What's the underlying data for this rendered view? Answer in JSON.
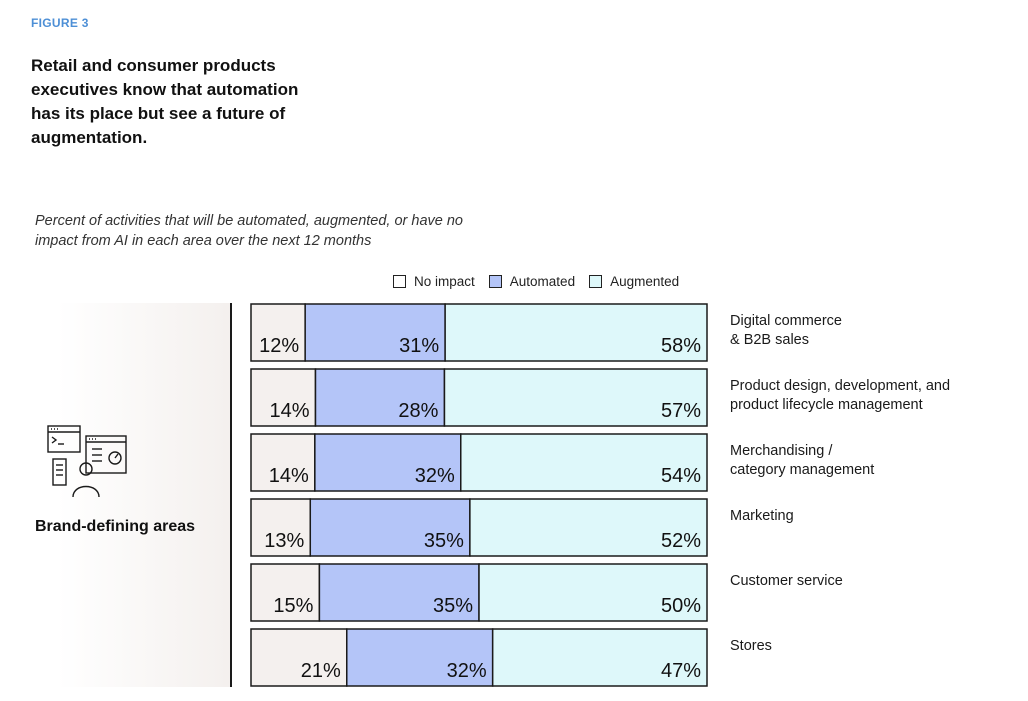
{
  "figure_label": "FIGURE 3",
  "colors": {
    "no_impact": "#f4f0ee",
    "automated": "#b4c5f8",
    "augmented": "#def8fa",
    "border": "#1a1a1a",
    "accent": "#4d8fd6"
  },
  "group": {
    "label": "Brand-defining areas",
    "icon": "workflow-dashboard-person-icon"
  },
  "chart_data": {
    "type": "bar",
    "orientation": "horizontal",
    "stacked": true,
    "normalized": true,
    "title": "Retail and consumer products executives know that automation has its place but see a future of augmentation.",
    "subtitle": "Percent of activities that will be automated, augmented, or have no impact from AI in each area over the next 12 months",
    "legend_position": "top",
    "grid": false,
    "categories": [
      "Digital commerce\n& B2B sales",
      "Product design, development, and\nproduct lifecycle management",
      "Merchandising /\ncategory management",
      "Marketing",
      "Customer service",
      "Stores"
    ],
    "series": [
      {
        "name": "No impact",
        "values": [
          12,
          14,
          14,
          13,
          15,
          21
        ]
      },
      {
        "name": "Automated",
        "values": [
          31,
          28,
          32,
          35,
          35,
          32
        ]
      },
      {
        "name": "Augmented",
        "values": [
          58,
          57,
          54,
          52,
          50,
          47
        ]
      }
    ],
    "value_labels": [
      [
        "12%",
        "31%",
        "58%"
      ],
      [
        "14%",
        "28%",
        "57%"
      ],
      [
        "14%",
        "32%",
        "54%"
      ],
      [
        "13%",
        "35%",
        "52%"
      ],
      [
        "15%",
        "35%",
        "50%"
      ],
      [
        "21%",
        "32%",
        "47%"
      ]
    ]
  }
}
